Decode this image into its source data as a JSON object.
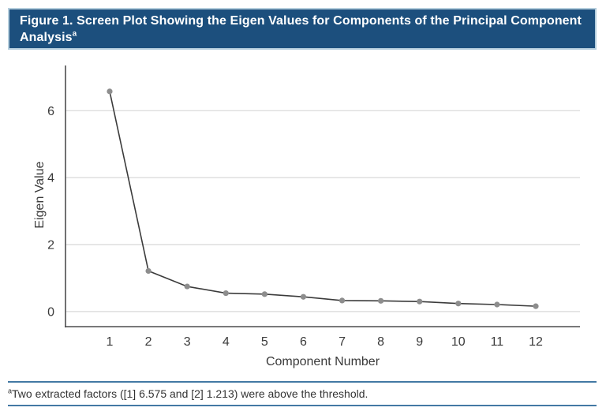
{
  "figure": {
    "header": {
      "title_text": "Figure 1. Screen Plot Showing the Eigen Values for Components of the Principal Component Analysis",
      "title_superscript": "a",
      "background_color": "#1c4f7d",
      "border_color": "#b5cedd",
      "text_color": "#ffffff"
    },
    "footnote": {
      "marker": "a",
      "text": "Two extracted factors ([1] 6.575 and [2] 1.213) were above the threshold.",
      "rule_color": "#4379a4",
      "text_color": "#333333"
    }
  },
  "chart_data": {
    "type": "line",
    "title": "",
    "xlabel": "Component Number",
    "ylabel": "Eigen Value",
    "categories": [
      "1",
      "2",
      "3",
      "4",
      "5",
      "6",
      "7",
      "8",
      "9",
      "10",
      "11",
      "12"
    ],
    "values": [
      6.575,
      1.213,
      0.75,
      0.55,
      0.52,
      0.44,
      0.33,
      0.32,
      0.3,
      0.24,
      0.21,
      0.16
    ],
    "yticks": [
      0,
      2,
      4,
      6
    ],
    "ylim": [
      -0.45,
      7.35
    ],
    "grid": "horizontal-only",
    "legend": "none",
    "colors": {
      "line": "#3b3b3b",
      "marker": "#8d8d8d",
      "gridline": "#d8d8d8",
      "axis": "#4d4d4f",
      "tick_label": "#3a3a3a"
    }
  }
}
